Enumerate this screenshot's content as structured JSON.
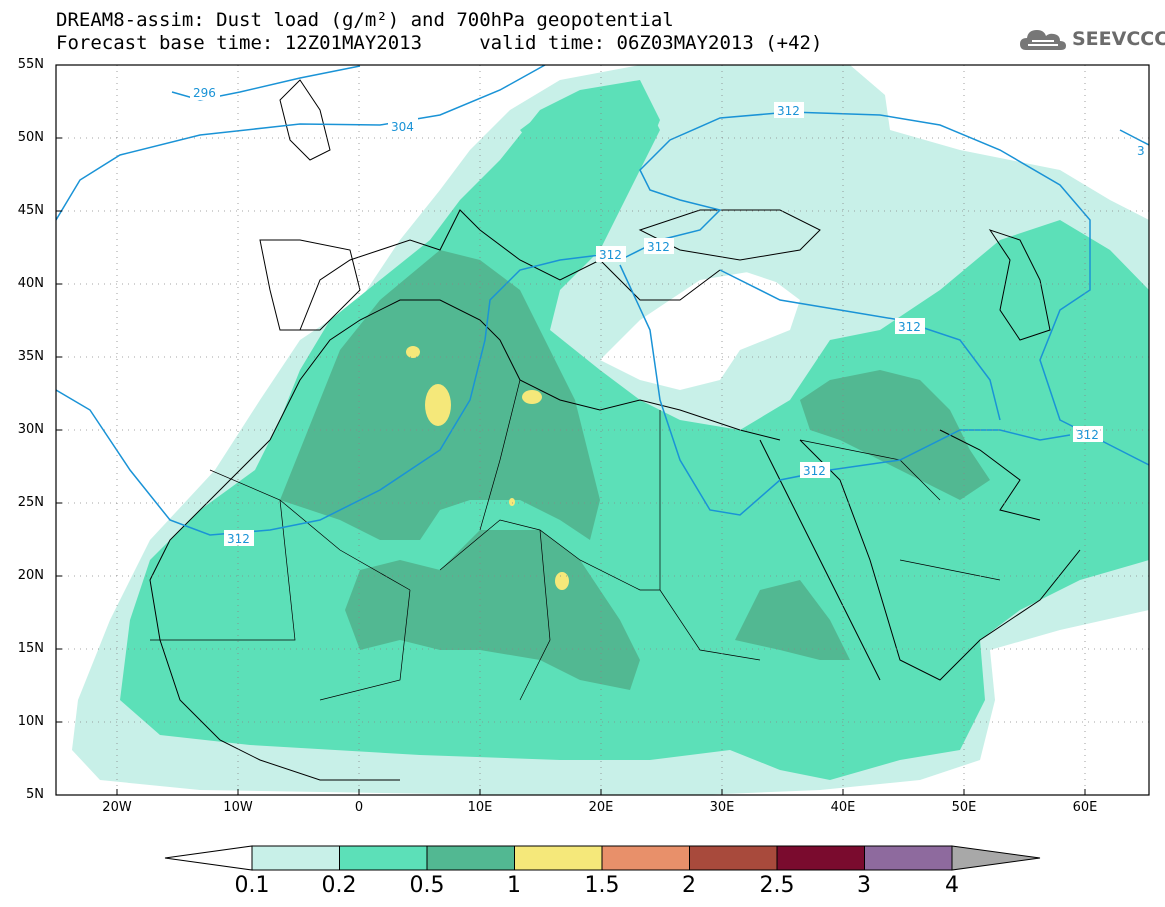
{
  "title": {
    "line1": "DREAM8-assim: Dust load (g/m²) and 700hPa geopotential",
    "line2": "Forecast base time: 12Z01MAY2013     valid time: 06Z03MAY2013 (+42)"
  },
  "logo": {
    "text": "SEEVCCC",
    "icon": "cloud-logo-icon"
  },
  "map": {
    "lat_labels": [
      "55N",
      "50N",
      "45N",
      "40N",
      "35N",
      "30N",
      "25N",
      "20N",
      "15N",
      "10N",
      "5N"
    ],
    "lon_labels": [
      "20W",
      "10W",
      "0",
      "10E",
      "20E",
      "30E",
      "40E",
      "50E",
      "60E"
    ],
    "contour_labels": [
      "296",
      "304",
      "312",
      "312",
      "312",
      "312",
      "312",
      "312",
      "3"
    ]
  },
  "colorbar": {
    "labels": [
      "0.1",
      "0.2",
      "0.5",
      "1",
      "1.5",
      "2",
      "2.5",
      "3",
      "4"
    ],
    "colors": [
      "#ffffff",
      "#c8f0e8",
      "#5ce0b8",
      "#52b892",
      "#f5e87a",
      "#e8906a",
      "#a84a3c",
      "#7a0b2e",
      "#8e6a9e",
      "#a8a8a8"
    ]
  },
  "colors": {
    "level_01": "#c8f0e8",
    "level_02": "#5ce0b8",
    "level_05": "#52b892",
    "level_1": "#f5e87a",
    "contour": "#1a93d6",
    "coast": "#000000"
  }
}
